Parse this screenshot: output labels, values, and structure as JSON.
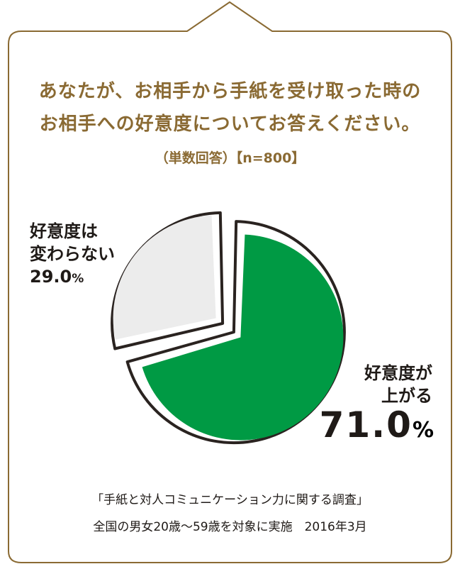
{
  "question": {
    "line1": "あなたが、お相手から手紙を受け取った時の",
    "line2": "お相手への好意度についてお答えください。"
  },
  "subtitle": "（単数回答）【n=800】",
  "chart_data": {
    "type": "pie",
    "slices": [
      {
        "label_line1": "好意度が",
        "label_line2": "上がる",
        "value": 71.0,
        "value_text": "71.0",
        "unit": "%",
        "color": "#009a44"
      },
      {
        "label_line1": "好意度は",
        "label_line2": "変わらない",
        "value": 29.0,
        "value_text": "29.0",
        "unit": "%",
        "color": "#ececec"
      }
    ],
    "outline_color": "#2a2320"
  },
  "colors": {
    "frame": "#8a6a33",
    "accent_text": "#8a6a33"
  },
  "footnote": {
    "line1": "「手紙と対人コミュニケーション力に関する調査」",
    "line2": "全国の男女20歳〜59歳を対象に実施　2016年3月"
  }
}
